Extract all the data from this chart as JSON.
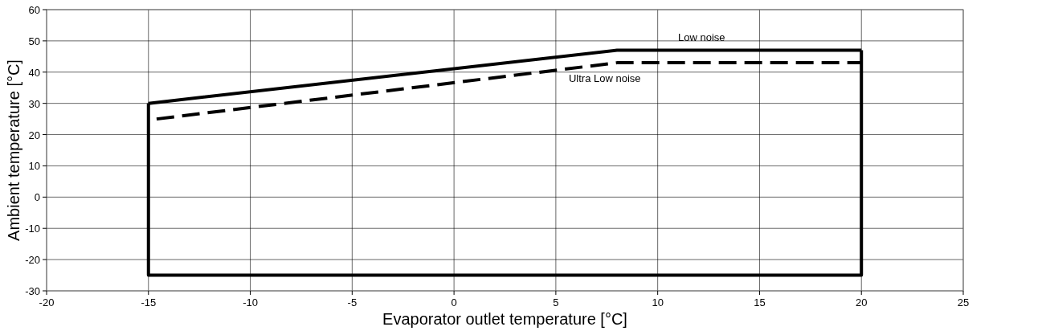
{
  "chart_data": {
    "type": "line",
    "xlabel": "Evaporator outlet temperature [°C]",
    "ylabel": "Ambient temperature [°C]",
    "xlim": [
      -20,
      25
    ],
    "xticks": [
      -20,
      -15,
      -10,
      -5,
      0,
      5,
      10,
      15,
      20,
      25
    ],
    "ylim": [
      -30,
      60
    ],
    "yticks": [
      -30,
      -20,
      -10,
      0,
      10,
      20,
      30,
      40,
      50,
      60
    ],
    "grid": true,
    "legend": false,
    "marker": "none",
    "series": [
      {
        "name": "Low noise",
        "color": "#000000",
        "line_style": "solid",
        "x": [
          -15,
          8,
          20
        ],
        "values": [
          30,
          47,
          47
        ]
      },
      {
        "color": "#000000",
        "line_style": "solid",
        "x": [
          20,
          20,
          -15,
          -15
        ],
        "values": [
          47,
          -25,
          -25,
          30
        ]
      },
      {
        "name": "Ultra Low noise",
        "color": "#000000",
        "line_style": "dashed",
        "x": [
          -14.6,
          8,
          20
        ],
        "values": [
          25,
          43,
          43
        ]
      }
    ]
  }
}
